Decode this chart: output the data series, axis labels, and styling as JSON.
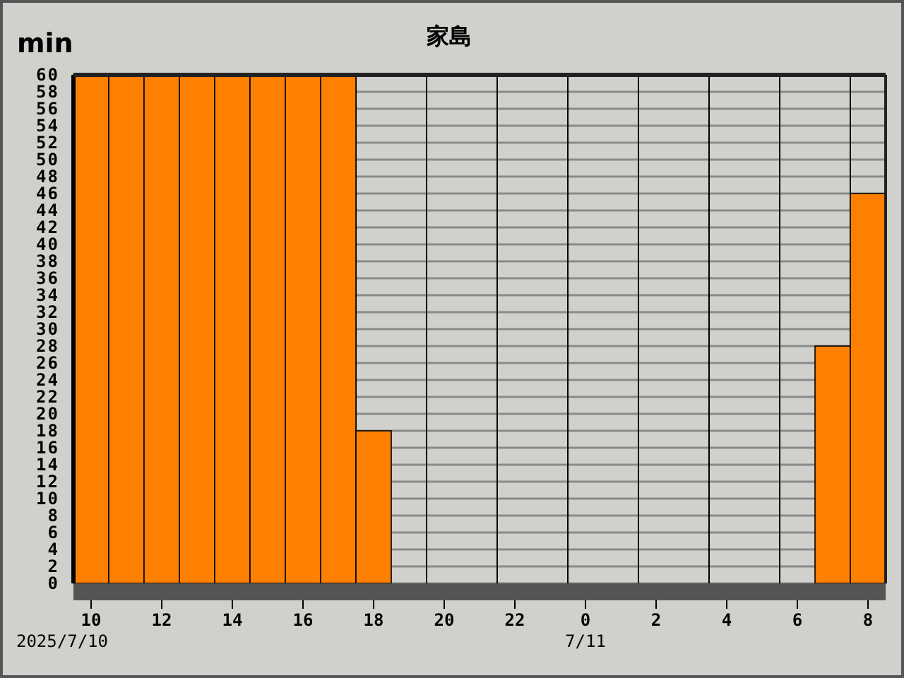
{
  "chart_data": {
    "type": "bar",
    "title": "家島",
    "ylabel": "min",
    "color": "#ff8000",
    "categories": [
      "10",
      null,
      "12",
      null,
      "14",
      null,
      "16",
      null,
      "18",
      null,
      "20",
      null,
      "22",
      null,
      "0",
      null,
      "2",
      null,
      "4",
      null,
      "6",
      null,
      "8"
    ],
    "values": [
      60,
      60,
      60,
      60,
      60,
      60,
      60,
      60,
      18,
      0,
      0,
      0,
      0,
      0,
      0,
      0,
      0,
      0,
      0,
      0,
      0,
      28,
      46
    ],
    "ylim": [
      0,
      60
    ],
    "yticks": [
      0,
      2,
      4,
      6,
      8,
      10,
      12,
      14,
      16,
      18,
      20,
      22,
      24,
      26,
      28,
      30,
      32,
      34,
      36,
      38,
      40,
      42,
      44,
      46,
      48,
      50,
      52,
      54,
      56,
      58,
      60
    ],
    "grid": true,
    "annotations": [
      "2025/7/10",
      "7/11"
    ]
  }
}
